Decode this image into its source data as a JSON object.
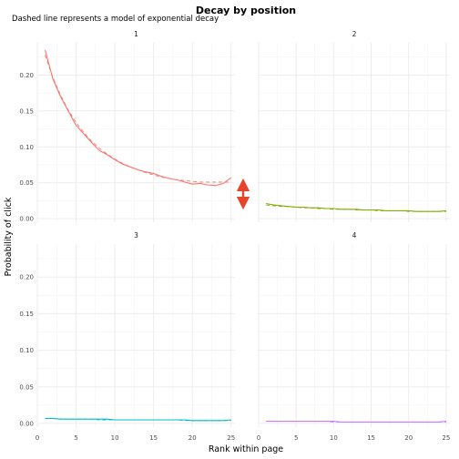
{
  "chart_data": {
    "type": "line",
    "title": "Decay by position",
    "subtitle": "Dashed line represents a model of exponential decay",
    "xlabel": "Rank within page",
    "ylabel": "Probability of click",
    "xlim": [
      0,
      25.5
    ],
    "ylim": [
      -0.005,
      0.245
    ],
    "x_ticks": [
      0,
      5,
      10,
      15,
      20,
      25
    ],
    "y_ticks": [
      0.0,
      0.05,
      0.1,
      0.15,
      0.2
    ],
    "y_tick_labels": [
      "0.00",
      "0.05",
      "0.10",
      "0.15",
      "0.20"
    ],
    "grid": true,
    "legend": "none",
    "layout": "2x2 facets",
    "annotation": "double-headed arrow between panel 1 and panel 2 at rank 25",
    "annotation_color": "#E8442B",
    "panels": [
      {
        "strip": "1",
        "color": "#F8766D",
        "x": [
          1,
          2,
          3,
          4,
          5,
          6,
          7,
          8,
          9,
          10,
          11,
          12,
          13,
          14,
          15,
          16,
          17,
          18,
          19,
          20,
          21,
          22,
          23,
          24,
          25
        ],
        "observed": [
          0.235,
          0.195,
          0.17,
          0.15,
          0.13,
          0.118,
          0.106,
          0.095,
          0.089,
          0.082,
          0.076,
          0.072,
          0.068,
          0.065,
          0.063,
          0.059,
          0.056,
          0.054,
          0.051,
          0.048,
          0.049,
          0.047,
          0.046,
          0.049,
          0.057
        ],
        "model": [
          0.228,
          0.197,
          0.172,
          0.151,
          0.134,
          0.12,
          0.108,
          0.098,
          0.09,
          0.083,
          0.077,
          0.072,
          0.068,
          0.064,
          0.061,
          0.058,
          0.056,
          0.054,
          0.053,
          0.052,
          0.051,
          0.051,
          0.051,
          0.051,
          0.051
        ]
      },
      {
        "strip": "2",
        "color": "#7CAE00",
        "x": [
          1,
          2,
          3,
          4,
          5,
          6,
          7,
          8,
          9,
          10,
          11,
          12,
          13,
          14,
          15,
          16,
          17,
          18,
          19,
          20,
          21,
          22,
          23,
          24,
          25
        ],
        "observed": [
          0.021,
          0.019,
          0.018,
          0.017,
          0.016,
          0.016,
          0.015,
          0.015,
          0.014,
          0.014,
          0.013,
          0.013,
          0.013,
          0.012,
          0.012,
          0.012,
          0.011,
          0.011,
          0.011,
          0.011,
          0.01,
          0.01,
          0.01,
          0.01,
          0.011
        ],
        "model": [
          0.019,
          0.018,
          0.017,
          0.017,
          0.016,
          0.015,
          0.015,
          0.014,
          0.014,
          0.013,
          0.013,
          0.013,
          0.012,
          0.012,
          0.012,
          0.011,
          0.011,
          0.011,
          0.011,
          0.01,
          0.01,
          0.01,
          0.01,
          0.01,
          0.01
        ]
      },
      {
        "strip": "3",
        "color": "#00BFC4",
        "x": [
          1,
          2,
          3,
          4,
          5,
          6,
          7,
          8,
          9,
          10,
          11,
          12,
          13,
          14,
          15,
          16,
          17,
          18,
          19,
          20,
          21,
          22,
          23,
          24,
          25
        ],
        "observed": [
          0.007,
          0.007,
          0.006,
          0.006,
          0.006,
          0.006,
          0.006,
          0.006,
          0.006,
          0.005,
          0.005,
          0.005,
          0.005,
          0.005,
          0.005,
          0.005,
          0.005,
          0.005,
          0.005,
          0.004,
          0.004,
          0.004,
          0.004,
          0.004,
          0.005
        ],
        "model": [
          0.007,
          0.007,
          0.006,
          0.006,
          0.006,
          0.006,
          0.006,
          0.005,
          0.005,
          0.005,
          0.005,
          0.005,
          0.005,
          0.005,
          0.005,
          0.005,
          0.005,
          0.005,
          0.004,
          0.004,
          0.004,
          0.004,
          0.004,
          0.004,
          0.004
        ]
      },
      {
        "strip": "4",
        "color": "#C77CFF",
        "x": [
          1,
          2,
          3,
          4,
          5,
          6,
          7,
          8,
          9,
          10,
          11,
          12,
          13,
          14,
          15,
          16,
          17,
          18,
          19,
          20,
          21,
          22,
          23,
          24,
          25
        ],
        "observed": [
          0.003,
          0.003,
          0.003,
          0.003,
          0.003,
          0.003,
          0.003,
          0.003,
          0.003,
          0.003,
          0.002,
          0.002,
          0.002,
          0.002,
          0.002,
          0.002,
          0.002,
          0.002,
          0.002,
          0.002,
          0.002,
          0.002,
          0.002,
          0.002,
          0.003
        ],
        "model": [
          0.003,
          0.003,
          0.003,
          0.003,
          0.003,
          0.003,
          0.003,
          0.003,
          0.003,
          0.002,
          0.002,
          0.002,
          0.002,
          0.002,
          0.002,
          0.002,
          0.002,
          0.002,
          0.002,
          0.002,
          0.002,
          0.002,
          0.002,
          0.002,
          0.002
        ]
      }
    ]
  }
}
